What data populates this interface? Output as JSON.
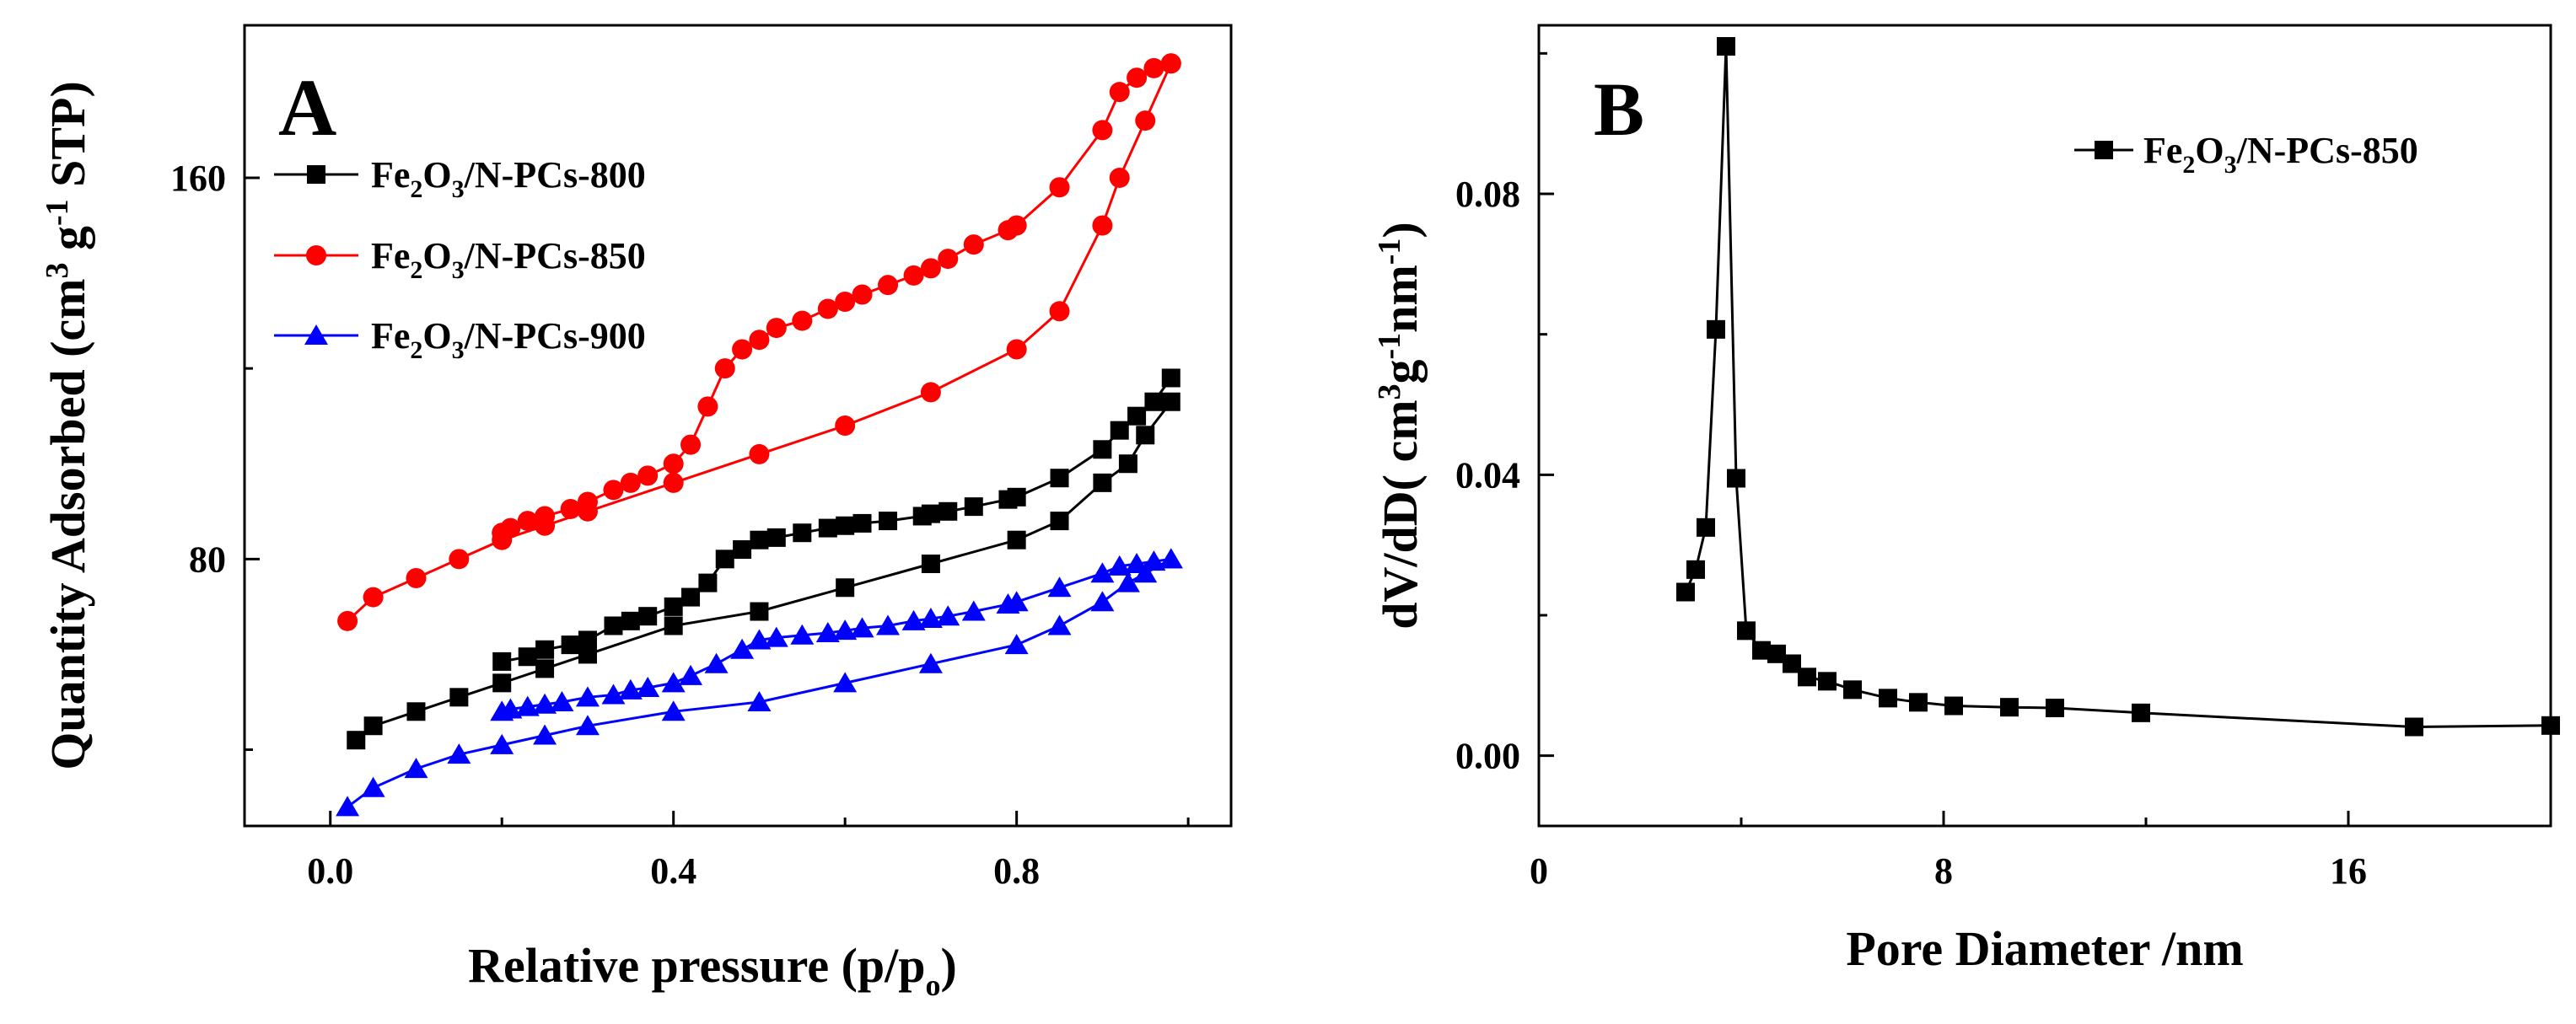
{
  "chart_data": [
    {
      "panel_label": "A",
      "type": "line",
      "xlabel": "Relative pressure (p/p",
      "xlabel_sub": "o",
      "xlabel_close": ")",
      "ylabel_main": "Quantity Adsorbed (cm",
      "ylabel_sup1": "3",
      "ylabel_mid": " g",
      "ylabel_sup2": "-1",
      "ylabel_end": " STP)",
      "xlim": [
        -0.1,
        1.05
      ],
      "ylim": [
        24,
        192
      ],
      "xticks": [
        "0.0",
        "0.4",
        "0.8"
      ],
      "xtick_values": [
        0.0,
        0.4,
        0.8
      ],
      "yticks": [
        "80",
        "160"
      ],
      "ytick_values": [
        80,
        160
      ],
      "legend_position": "top-left",
      "series": [
        {
          "name_pre": "Fe",
          "name_sub1": "2",
          "name_mid": "O",
          "name_sub2": "3",
          "name_post": "/N-PCs-800",
          "color": "#000000",
          "marker": "square",
          "adsorption": {
            "x": [
              0.03,
              0.05,
              0.1,
              0.15,
              0.2,
              0.25,
              0.3,
              0.4,
              0.5,
              0.6,
              0.7,
              0.8,
              0.85,
              0.9,
              0.93,
              0.95,
              0.98
            ],
            "y": [
              42.0,
              45.0,
              48.0,
              51.0,
              54.0,
              57.0,
              60.0,
              66.0,
              69.0,
              74.0,
              79.0,
              84.0,
              88.0,
              96.0,
              100.0,
              106.0,
              113.0
            ]
          },
          "desorption": {
            "x": [
              0.98,
              0.96,
              0.94,
              0.92,
              0.9,
              0.85,
              0.8,
              0.79,
              0.75,
              0.72,
              0.7,
              0.69,
              0.65,
              0.62,
              0.6,
              0.58,
              0.55,
              0.52,
              0.5,
              0.48,
              0.46,
              0.44,
              0.42,
              0.4,
              0.37,
              0.35,
              0.33,
              0.3,
              0.28,
              0.25,
              0.23,
              0.2
            ],
            "y": [
              118.0,
              113.0,
              110.0,
              107.0,
              103.0,
              97.0,
              93.0,
              92.5,
              91.0,
              90.0,
              89.5,
              89.0,
              88.0,
              87.5,
              87.0,
              86.5,
              85.5,
              84.5,
              84.0,
              82.0,
              80.0,
              75.0,
              72.0,
              70.0,
              68.0,
              67.0,
              66.0,
              63.0,
              62.0,
              61.0,
              59.5,
              58.5
            ]
          }
        },
        {
          "name_pre": "Fe",
          "name_sub1": "2",
          "name_mid": "O",
          "name_sub2": "3",
          "name_post": "/N-PCs-850",
          "color": "#ff0000",
          "marker": "circle",
          "adsorption": {
            "x": [
              0.02,
              0.05,
              0.1,
              0.15,
              0.2,
              0.25,
              0.3,
              0.4,
              0.5,
              0.6,
              0.7,
              0.8,
              0.85,
              0.9,
              0.92,
              0.95,
              0.98
            ],
            "y": [
              67.0,
              72.0,
              76.0,
              80.0,
              84.0,
              87.0,
              90.0,
              96.0,
              102.0,
              108.0,
              115.0,
              124.0,
              132.0,
              150.0,
              160.0,
              172.0,
              184.0
            ]
          },
          "desorption": {
            "x": [
              0.98,
              0.96,
              0.94,
              0.92,
              0.9,
              0.85,
              0.8,
              0.79,
              0.75,
              0.72,
              0.7,
              0.68,
              0.65,
              0.62,
              0.6,
              0.58,
              0.55,
              0.52,
              0.5,
              0.48,
              0.46,
              0.44,
              0.42,
              0.4,
              0.37,
              0.35,
              0.33,
              0.3,
              0.28,
              0.25,
              0.23,
              0.21,
              0.2
            ],
            "y": [
              184.0,
              183.0,
              181.0,
              178.0,
              170.0,
              158.0,
              150.0,
              149.0,
              146.0,
              143.0,
              141.0,
              139.5,
              137.5,
              135.5,
              134.0,
              132.5,
              130.0,
              128.5,
              126.0,
              124.0,
              120.0,
              112.0,
              104.0,
              100.0,
              97.5,
              96.0,
              94.5,
              92.0,
              90.5,
              89.0,
              88.0,
              86.5,
              85.5
            ]
          }
        },
        {
          "name_pre": "Fe",
          "name_sub1": "2",
          "name_mid": "O",
          "name_sub2": "3",
          "name_post": "/N-PCs-900",
          "color": "#0000ff",
          "marker": "triangle",
          "adsorption": {
            "x": [
              0.02,
              0.05,
              0.1,
              0.15,
              0.2,
              0.25,
              0.3,
              0.4,
              0.5,
              0.6,
              0.7,
              0.8,
              0.85,
              0.9,
              0.93,
              0.95,
              0.98
            ],
            "y": [
              28.0,
              32.0,
              36.0,
              39.0,
              41.0,
              43.0,
              45.0,
              48.0,
              50.0,
              54.0,
              58.0,
              62.0,
              66.0,
              71.0,
              75.0,
              77.0,
              80.0
            ]
          },
          "desorption": {
            "x": [
              0.98,
              0.96,
              0.94,
              0.92,
              0.9,
              0.85,
              0.8,
              0.79,
              0.75,
              0.72,
              0.7,
              0.68,
              0.65,
              0.62,
              0.6,
              0.58,
              0.55,
              0.52,
              0.5,
              0.48,
              0.45,
              0.42,
              0.4,
              0.37,
              0.35,
              0.33,
              0.3,
              0.27,
              0.25,
              0.23,
              0.21,
              0.2
            ],
            "y": [
              80.0,
              79.5,
              79.0,
              78.5,
              77.0,
              74.0,
              71.0,
              70.5,
              69.0,
              68.0,
              67.5,
              67.0,
              66.0,
              65.5,
              65.0,
              64.5,
              64.0,
              63.5,
              63.0,
              61.0,
              58.0,
              55.5,
              54.0,
              53.0,
              52.5,
              51.5,
              51.0,
              50.0,
              49.5,
              49.0,
              48.5,
              48.0
            ]
          }
        }
      ]
    },
    {
      "panel_label": "B",
      "type": "line",
      "xlabel": "Pore Diameter /nm",
      "ylabel_main": "dV/dD( cm",
      "ylabel_sup1": "3",
      "ylabel_mid": "g",
      "ylabel_sup2": "-1",
      "ylabel_mid2": "nm",
      "ylabel_sup3": "-1",
      "ylabel_end": ")",
      "xlim": [
        0,
        20
      ],
      "ylim": [
        -0.01,
        0.104
      ],
      "xticks": [
        "0",
        "8",
        "16"
      ],
      "xtick_values": [
        0,
        8,
        16
      ],
      "yticks": [
        "0.00",
        "0.04",
        "0.08"
      ],
      "ytick_values": [
        0.0,
        0.04,
        0.08
      ],
      "legend_position": "top-right",
      "series": [
        {
          "name_pre": "Fe",
          "name_sub1": "2",
          "name_mid": "O",
          "name_sub2": "3",
          "name_post": "/N-PCs-850",
          "color": "#000000",
          "marker": "square",
          "x": [
            2.9,
            3.1,
            3.3,
            3.5,
            3.7,
            3.9,
            4.1,
            4.4,
            4.7,
            5.0,
            5.3,
            5.7,
            6.2,
            6.9,
            7.5,
            8.2,
            9.3,
            10.2,
            11.9,
            17.3,
            20.0
          ],
          "y": [
            0.0233,
            0.0265,
            0.0325,
            0.0607,
            0.101,
            0.0395,
            0.0178,
            0.015,
            0.0145,
            0.0131,
            0.0112,
            0.0106,
            0.0094,
            0.0082,
            0.0076,
            0.0071,
            0.0069,
            0.0068,
            0.0061,
            0.0041,
            0.0043
          ]
        }
      ]
    }
  ]
}
